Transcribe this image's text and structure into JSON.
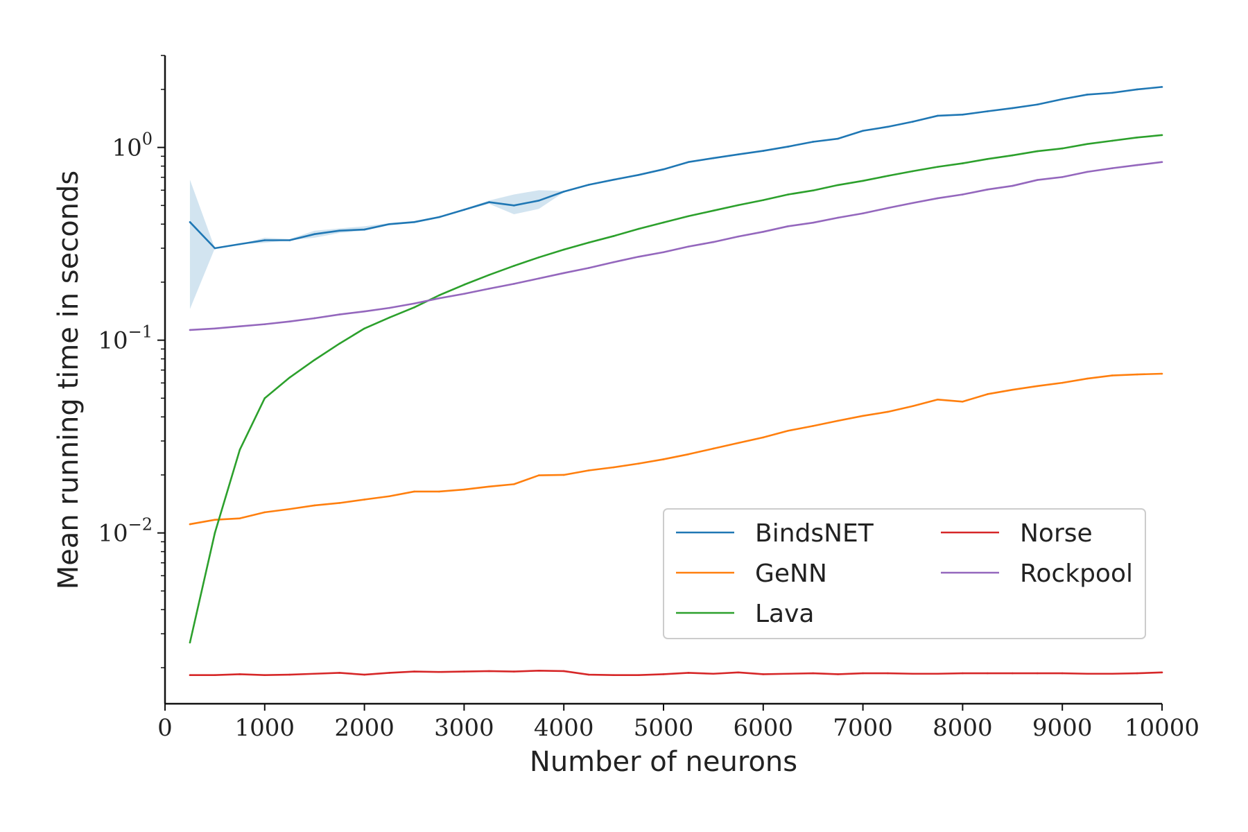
{
  "chart_data": {
    "type": "line",
    "title": "",
    "xlabel": "Number of neurons",
    "ylabel": "Mean running time in seconds",
    "xlim": [
      0,
      10000
    ],
    "ylim": [
      0.0013,
      3.0
    ],
    "yscale": "log",
    "grid": false,
    "legend_placement": "lower-right",
    "legend_columns": 2,
    "x_ticks": [
      0,
      1000,
      2000,
      3000,
      4000,
      5000,
      6000,
      7000,
      8000,
      9000,
      10000
    ],
    "x_tick_labels": [
      "0",
      "1000",
      "2000",
      "3000",
      "4000",
      "5000",
      "6000",
      "7000",
      "8000",
      "9000",
      "10000"
    ],
    "y_ticks": [
      {
        "value": 1,
        "base": "10",
        "exp": "0"
      },
      {
        "value": 0.1,
        "base": "10",
        "exp": "−1"
      },
      {
        "value": 0.01,
        "base": "10",
        "exp": "−2"
      }
    ],
    "x": [
      250,
      500,
      750,
      1000,
      1250,
      1500,
      1750,
      2000,
      2250,
      2500,
      2750,
      3000,
      3250,
      3500,
      3750,
      4000,
      4250,
      4500,
      4750,
      5000,
      5250,
      5500,
      5750,
      6000,
      6250,
      6500,
      6750,
      7000,
      7250,
      7500,
      7750,
      8000,
      8250,
      8500,
      8750,
      9000,
      9250,
      9500,
      9750,
      10000
    ],
    "series": [
      {
        "name": "BindsNET",
        "color": "#1f77b4",
        "values": [
          0.41,
          0.3,
          0.315,
          0.33,
          0.33,
          0.355,
          0.37,
          0.375,
          0.4,
          0.41,
          0.435,
          0.475,
          0.52,
          0.5,
          0.53,
          0.59,
          0.64,
          0.68,
          0.72,
          0.77,
          0.84,
          0.88,
          0.92,
          0.96,
          1.01,
          1.07,
          1.11,
          1.22,
          1.28,
          1.36,
          1.46,
          1.48,
          1.54,
          1.6,
          1.67,
          1.78,
          1.88,
          1.92,
          2.0,
          2.06
        ],
        "band_low": [
          0.145,
          0.3,
          0.315,
          0.32,
          0.33,
          0.34,
          0.36,
          0.37,
          0.395,
          0.405,
          0.43,
          0.47,
          0.51,
          0.45,
          0.48,
          0.585,
          0.635,
          0.675,
          0.715,
          0.765,
          0.835,
          0.875,
          0.915,
          0.955,
          1.005,
          1.065,
          1.105,
          1.215,
          1.275,
          1.355,
          1.455,
          1.475,
          1.535,
          1.595,
          1.665,
          1.775,
          1.875,
          1.915,
          1.995,
          2.055
        ],
        "band_high": [
          0.68,
          0.3,
          0.315,
          0.34,
          0.335,
          0.37,
          0.38,
          0.39,
          0.405,
          0.415,
          0.44,
          0.48,
          0.53,
          0.57,
          0.6,
          0.595,
          0.645,
          0.685,
          0.725,
          0.775,
          0.845,
          0.885,
          0.925,
          0.965,
          1.015,
          1.075,
          1.115,
          1.225,
          1.285,
          1.365,
          1.465,
          1.485,
          1.545,
          1.605,
          1.675,
          1.785,
          1.885,
          1.925,
          2.005,
          2.065
        ]
      },
      {
        "name": "GeNN",
        "color": "#ff7f0e",
        "values": [
          0.0111,
          0.0117,
          0.0119,
          0.0128,
          0.0133,
          0.0139,
          0.0143,
          0.0149,
          0.0155,
          0.0164,
          0.0164,
          0.0168,
          0.0174,
          0.0179,
          0.0199,
          0.02,
          0.0211,
          0.0219,
          0.0229,
          0.0241,
          0.0256,
          0.0274,
          0.0293,
          0.0313,
          0.0339,
          0.0359,
          0.0382,
          0.0405,
          0.0425,
          0.0455,
          0.0492,
          0.048,
          0.0525,
          0.0553,
          0.0578,
          0.0601,
          0.0632,
          0.0656,
          0.0664,
          0.067
        ]
      },
      {
        "name": "Lava",
        "color": "#2ca02c",
        "values": [
          0.0027,
          0.01,
          0.027,
          0.05,
          0.064,
          0.079,
          0.096,
          0.115,
          0.131,
          0.148,
          0.171,
          0.194,
          0.218,
          0.243,
          0.269,
          0.295,
          0.321,
          0.347,
          0.378,
          0.408,
          0.44,
          0.47,
          0.502,
          0.533,
          0.57,
          0.598,
          0.638,
          0.671,
          0.712,
          0.753,
          0.793,
          0.827,
          0.871,
          0.91,
          0.956,
          0.988,
          1.042,
          1.083,
          1.126,
          1.159
        ]
      },
      {
        "name": "Norse",
        "color": "#d62728",
        "values": [
          0.00183,
          0.00183,
          0.00185,
          0.00183,
          0.00184,
          0.00186,
          0.00188,
          0.00184,
          0.00188,
          0.00191,
          0.0019,
          0.00191,
          0.00192,
          0.00191,
          0.00193,
          0.00192,
          0.00184,
          0.00183,
          0.00183,
          0.00185,
          0.00188,
          0.00186,
          0.00189,
          0.00185,
          0.00186,
          0.00187,
          0.00185,
          0.00187,
          0.00187,
          0.00186,
          0.00186,
          0.00187,
          0.00187,
          0.00187,
          0.00187,
          0.00187,
          0.00186,
          0.00186,
          0.00187,
          0.00189
        ]
      },
      {
        "name": "Rockpool",
        "color": "#9467bd",
        "values": [
          0.113,
          0.115,
          0.118,
          0.121,
          0.125,
          0.13,
          0.136,
          0.141,
          0.147,
          0.155,
          0.165,
          0.174,
          0.185,
          0.196,
          0.209,
          0.223,
          0.237,
          0.254,
          0.271,
          0.286,
          0.306,
          0.323,
          0.345,
          0.365,
          0.39,
          0.407,
          0.432,
          0.455,
          0.485,
          0.515,
          0.545,
          0.57,
          0.605,
          0.632,
          0.678,
          0.702,
          0.747,
          0.78,
          0.81,
          0.84
        ]
      }
    ]
  }
}
